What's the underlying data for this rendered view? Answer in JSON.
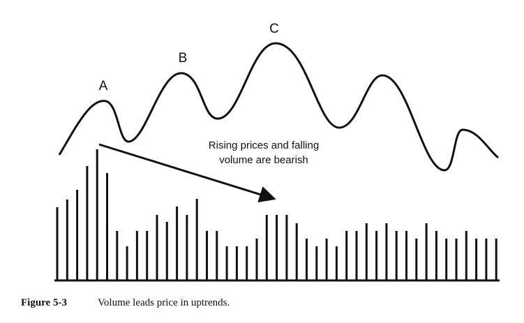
{
  "figure": {
    "labels": [
      "A",
      "B",
      "C"
    ],
    "annotation": [
      "Rising prices and falling",
      "volume are bearish"
    ],
    "caption": {
      "number": "Figure 5-3",
      "text": "Volume leads price in uptrends."
    }
  }
}
